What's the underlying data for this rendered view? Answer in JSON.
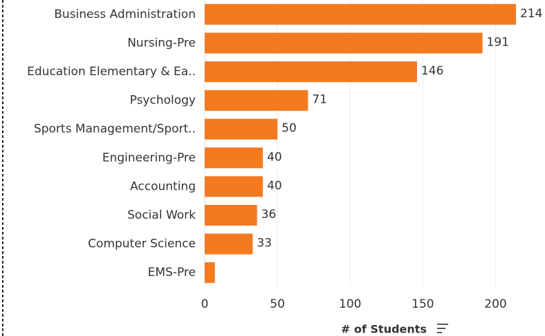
{
  "chart_data": {
    "type": "bar",
    "orientation": "horizontal",
    "categories": [
      "Business Administration",
      "Nursing-Pre",
      "Education Elementary & Ea..",
      "Psychology",
      "Sports Management/Sport..",
      "Engineering-Pre",
      "Accounting",
      "Social Work",
      "Computer Science",
      "EMS-Pre"
    ],
    "values": [
      214,
      191,
      146,
      71,
      50,
      40,
      40,
      36,
      33,
      7
    ],
    "value_labels": [
      "214",
      "191",
      "146",
      "71",
      "50",
      "40",
      "40",
      "36",
      "33",
      null
    ],
    "color": "#f47a20",
    "xlabel": "# of Students",
    "xlim": [
      0,
      234
    ],
    "xticks": [
      0,
      50,
      100,
      150,
      200
    ],
    "grid": true
  }
}
